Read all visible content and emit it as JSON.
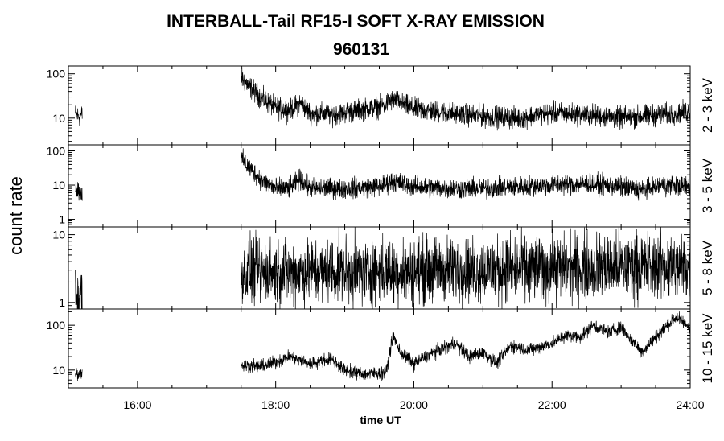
{
  "chart_data": {
    "type": "line",
    "title": "INTERBALL-Tail RF15-I SOFT X-RAY EMISSION",
    "subtitle": "960131",
    "xlabel": "time UT",
    "ylabel": "count rate",
    "x_ticks": [
      "16:00",
      "18:00",
      "20:00",
      "22:00",
      "24:00"
    ],
    "xlim_hours": [
      15,
      24
    ],
    "grid": false,
    "panels": [
      {
        "name": "2 - 3 keV",
        "yscale": "log",
        "ylim": [
          2.5,
          150
        ],
        "y_ticks": [
          "100",
          "10"
        ],
        "segments": [
          {
            "x": [
              15.1,
              15.15,
              15.2
            ],
            "y": [
              12,
              11,
              12
            ],
            "noise": 0.25
          },
          {
            "x": [
              17.5,
              17.6,
              17.8,
              18.0,
              18.2,
              18.35,
              18.5,
              18.8,
              19.2,
              19.5,
              19.7,
              20.0,
              20.5,
              21.0,
              21.5,
              22.0,
              22.5,
              23.0,
              23.3,
              23.6,
              24.0
            ],
            "y": [
              85,
              55,
              28,
              17,
              15,
              22,
              13,
              12,
              15,
              18,
              26,
              16,
              13,
              11,
              10,
              13,
              12,
              10,
              11,
              12,
              14
            ],
            "noise": 0.25
          }
        ]
      },
      {
        "name": "3 - 5 keV",
        "yscale": "log",
        "ylim": [
          0.6,
          150
        ],
        "y_ticks": [
          "100",
          "10",
          "1"
        ],
        "segments": [
          {
            "x": [
              15.1,
              15.15,
              15.2
            ],
            "y": [
              8,
              7,
              6
            ],
            "noise": 0.3
          },
          {
            "x": [
              17.5,
              17.6,
              17.8,
              18.0,
              18.2,
              18.35,
              18.5,
              19.0,
              19.5,
              19.7,
              20.0,
              20.5,
              21.0,
              21.5,
              22.0,
              22.5,
              23.0,
              23.3,
              23.6,
              24.0
            ],
            "y": [
              60,
              35,
              14,
              8,
              8,
              15,
              8,
              8,
              9,
              13,
              9,
              8,
              8,
              9,
              10,
              11,
              9,
              7,
              10,
              9
            ],
            "noise": 0.3
          }
        ]
      },
      {
        "name": "5 - 8 keV",
        "yscale": "log",
        "ylim": [
          0.8,
          13
        ],
        "y_ticks": [
          "10",
          "1"
        ],
        "segments": [
          {
            "x": [
              15.1,
              15.15,
              15.2
            ],
            "y": [
              1.3,
              1.3,
              1.3
            ],
            "noise": 0.5
          },
          {
            "x": [
              17.5,
              18.5,
              19.5,
              20.5,
              21.5,
              22.5,
              23.5,
              24.0
            ],
            "y": [
              2.8,
              2.8,
              2.9,
              3.0,
              3.1,
              3.3,
              3.5,
              3.4
            ],
            "noise": 0.5
          }
        ]
      },
      {
        "name": "10 - 15 keV",
        "yscale": "log",
        "ylim": [
          4,
          230
        ],
        "y_ticks": [
          "100",
          "10"
        ],
        "segments": [
          {
            "x": [
              15.1,
              15.15,
              15.2
            ],
            "y": [
              9,
              8,
              9
            ],
            "noise": 0.15
          },
          {
            "x": [
              17.5,
              17.8,
              18.0,
              18.2,
              18.5,
              18.8,
              19.0,
              19.3,
              19.6,
              19.7,
              19.8,
              20.0,
              20.3,
              20.6,
              20.8,
              21.0,
              21.2,
              21.4,
              21.7,
              22.0,
              22.2,
              22.4,
              22.6,
              22.8,
              23.0,
              23.3,
              23.6,
              23.8,
              24.0
            ],
            "y": [
              13,
              12,
              15,
              20,
              14,
              18,
              10,
              8,
              9,
              60,
              25,
              14,
              25,
              40,
              20,
              25,
              14,
              35,
              28,
              40,
              60,
              55,
              100,
              70,
              90,
              25,
              80,
              150,
              90
            ],
            "noise": 0.15
          }
        ]
      }
    ]
  }
}
